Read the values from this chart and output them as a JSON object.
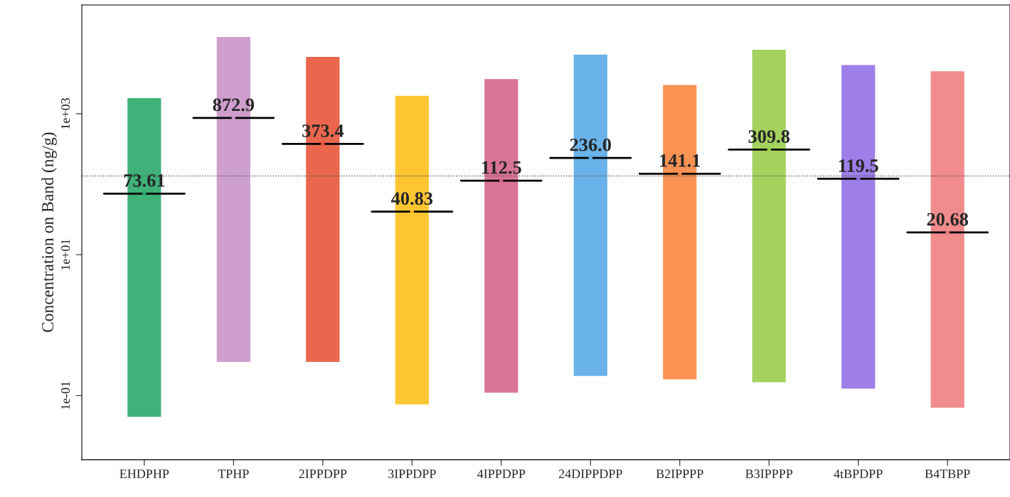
{
  "chart_data": {
    "type": "scatter",
    "ylabel": "Concentration on Band (ng/g)",
    "categories": [
      "EHDPHP",
      "TPHP",
      "2IPPDPP",
      "3IPPDPP",
      "4IPPDPP",
      "24DIPPDPP",
      "B2IPPPP",
      "B3IPPPP",
      "4tBPDPP",
      "B4TBPP"
    ],
    "values": [
      73.61,
      872.9,
      373.4,
      40.83,
      112.5,
      236.0,
      141.1,
      309.8,
      119.5,
      20.68
    ],
    "value_labels": [
      "73.61",
      "872.9",
      "373.4",
      "40.83",
      "112.5",
      "236.0",
      "141.1",
      "309.8",
      "119.5",
      "20.68"
    ],
    "errors": [
      [
        0.05,
        1670
      ],
      [
        0.3,
        12300
      ],
      [
        0.3,
        6400
      ],
      [
        0.075,
        1800
      ],
      [
        0.11,
        3100
      ],
      [
        0.19,
        6900
      ],
      [
        0.17,
        2560
      ],
      [
        0.155,
        8100
      ],
      [
        0.126,
        4900
      ],
      [
        0.067,
        4000
      ]
    ],
    "colors": [
      "#2aa86a",
      "#c994c7",
      "#e8563a",
      "#fdbf1c",
      "#d6658a",
      "#5aabe8",
      "#f98640",
      "#9acd4c",
      "#9370e6",
      "#f08080"
    ],
    "log": "y",
    "ylim": [
      0.0123,
      35000
    ],
    "yticks": [
      {
        "value": 0.1,
        "label": "1e-01"
      },
      {
        "value": 10,
        "label": "1e+01"
      },
      {
        "value": 1000,
        "label": "1e+03"
      }
    ],
    "ref_lines": [
      {
        "axis": "y",
        "value": 131,
        "line_style": "dotted",
        "color": "#555555"
      }
    ],
    "grid": false
  }
}
